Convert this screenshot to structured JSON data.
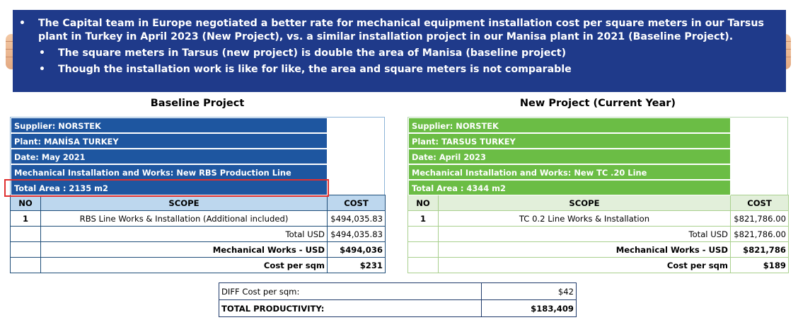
{
  "banner": {
    "bullet_main": "The Capital team in Europe negotiated a better rate for mechanical equipment installation cost per square meters in our Tarsus plant in Turkey in April 2023 (New Project), vs. a similar installation project in our Manisa plant in 2021 (Baseline Project).",
    "sub_bullets": [
      "The square meters in Tarsus (new project) is double the area of Manisa (baseline project)",
      "Though the installation work is like for like, the area and square meters is not comparable"
    ]
  },
  "baseline": {
    "title": "Baseline Project",
    "supplier": "Supplier: NORSTEK",
    "plant": "Plant: MANİSA TURKEY",
    "date": "Date: May 2021",
    "works": "Mechanical Installation and Works: New RBS Production Line",
    "area": "Total Area : 2135 m2",
    "col_no": "NO",
    "col_scope": "SCOPE",
    "col_cost": "COST",
    "row_no": "1",
    "row_scope": "RBS Line Works & Installation (Additional included)",
    "row_cost": "$494,035.83",
    "total_label": "Total USD",
    "total_value": "$494,035.83",
    "mech_label": "Mechanical Works - USD",
    "mech_value": "$494,036",
    "sqm_label": "Cost per sqm",
    "sqm_value": "$231"
  },
  "newproj": {
    "title": "New Project (Current Year)",
    "supplier": "Supplier: NORSTEK",
    "plant": "Plant: TARSUS TURKEY",
    "date": "Date: April 2023",
    "works": "Mechanical Installation and Works: New TC .20 Line",
    "area": "Total Area : 4344 m2",
    "col_no": "NO",
    "col_scope": "SCOPE",
    "col_cost": "COST",
    "row_no": "1",
    "row_scope": "TC 0.2 Line Works & Installation",
    "row_cost": "$821,786.00",
    "total_label": "Total USD",
    "total_value": "$821,786.00",
    "mech_label": "Mechanical Works - USD",
    "mech_value": "$821,786",
    "sqm_label": "Cost per sqm",
    "sqm_value": "$189"
  },
  "summary": {
    "diff_label": "DIFF Cost per sqm:",
    "diff_value": "$42",
    "prod_label": "TOTAL PRODUCTIVITY:",
    "prod_value": "$183,409"
  },
  "colors": {
    "banner": "#1f3a8a",
    "baseline_header": "#1e56a0",
    "new_header": "#6bbd45",
    "highlight": "#e03030"
  }
}
